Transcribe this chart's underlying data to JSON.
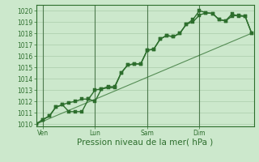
{
  "xlabel": "Pression niveau de la mer( hPa )",
  "ylim": [
    1009.8,
    1020.5
  ],
  "xlim": [
    0,
    100
  ],
  "yticks": [
    1010,
    1011,
    1012,
    1013,
    1014,
    1015,
    1016,
    1017,
    1018,
    1019,
    1020
  ],
  "xtick_positions": [
    3,
    27,
    51,
    75
  ],
  "xtick_labels": [
    "Ven",
    "Lun",
    "Sam",
    "Dim"
  ],
  "vline_positions": [
    3,
    27,
    51,
    75
  ],
  "bg_color": "#cce8cc",
  "grid_color": "#aaccaa",
  "line_color": "#2d6e2d",
  "series1_x": [
    0,
    3,
    6,
    9,
    12,
    15,
    18,
    21,
    24,
    27,
    30,
    33,
    36,
    39,
    42,
    45,
    48,
    51,
    54,
    57,
    60,
    63,
    66,
    69,
    72,
    75,
    78,
    81,
    84,
    87,
    90,
    93,
    96,
    99
  ],
  "series1_y": [
    1010.0,
    1010.4,
    1010.7,
    1011.5,
    1011.7,
    1011.9,
    1012.0,
    1012.2,
    1012.2,
    1013.0,
    1013.1,
    1013.3,
    1013.3,
    1014.5,
    1015.2,
    1015.3,
    1015.3,
    1016.5,
    1016.6,
    1017.5,
    1017.8,
    1017.7,
    1018.0,
    1018.8,
    1019.0,
    1019.6,
    1019.8,
    1019.75,
    1019.2,
    1019.1,
    1019.5,
    1019.6,
    1019.5,
    1018.0
  ],
  "series2_x": [
    0,
    3,
    6,
    9,
    12,
    15,
    18,
    21,
    24,
    27,
    30,
    33,
    36,
    39,
    42,
    45,
    48,
    51,
    54,
    57,
    60,
    63,
    66,
    69,
    72,
    75,
    78,
    81,
    84,
    87,
    90,
    93,
    96,
    99
  ],
  "series2_y": [
    1010.0,
    1010.4,
    1010.7,
    1011.5,
    1011.7,
    1011.1,
    1011.1,
    1011.1,
    1012.2,
    1012.0,
    1013.1,
    1013.2,
    1013.2,
    1014.5,
    1015.2,
    1015.3,
    1015.3,
    1016.5,
    1016.6,
    1017.5,
    1017.8,
    1017.7,
    1018.0,
    1018.8,
    1019.2,
    1020.0,
    1019.8,
    1019.75,
    1019.2,
    1019.1,
    1019.7,
    1019.5,
    1019.5,
    1018.0
  ],
  "trend_x": [
    0,
    99
  ],
  "trend_y": [
    1010.0,
    1018.0
  ],
  "marker_size": 2.5,
  "line_width": 1.0,
  "tick_fontsize": 5.5,
  "xlabel_fontsize": 7.5
}
